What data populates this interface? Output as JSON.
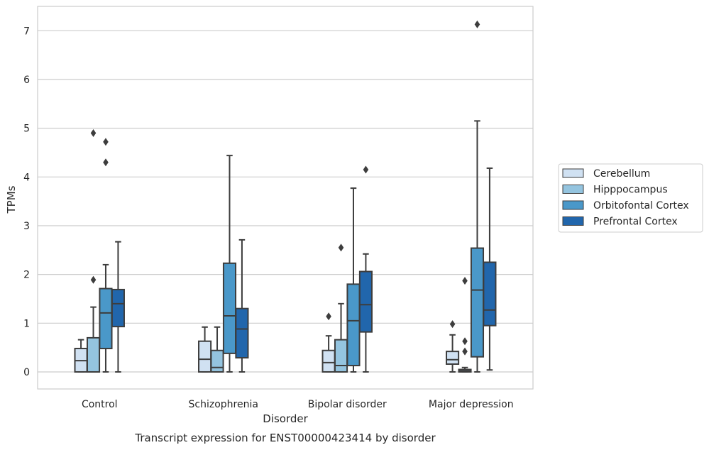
{
  "chart_data": {
    "type": "box",
    "title": "",
    "caption": "Transcript expression for ENST00000423414 by disorder",
    "xlabel": "Disorder",
    "ylabel": "TPMs",
    "ylim": [
      -0.35,
      7.5
    ],
    "yticks": [
      0,
      1,
      2,
      3,
      4,
      5,
      6,
      7
    ],
    "grid": "horizontal",
    "legend_placement": "right",
    "categories": [
      "Control",
      "Schizophrenia",
      "Bipolar disorder",
      "Major depression"
    ],
    "series": [
      {
        "name": "Cerebellum",
        "color": "#d0e1f2",
        "boxes": [
          {
            "whislo": 0,
            "q1": 0,
            "med": 0.23,
            "q3": 0.48,
            "whishi": 0.66,
            "fliers": []
          },
          {
            "whislo": 0,
            "q1": 0,
            "med": 0.26,
            "q3": 0.63,
            "whishi": 0.92,
            "fliers": []
          },
          {
            "whislo": 0,
            "q1": 0,
            "med": 0.19,
            "q3": 0.44,
            "whishi": 0.74,
            "fliers": [
              1.14
            ]
          },
          {
            "whislo": 0,
            "q1": 0.16,
            "med": 0.25,
            "q3": 0.42,
            "whishi": 0.76,
            "fliers": [
              0.98
            ]
          }
        ]
      },
      {
        "name": "Hipppocampus",
        "color": "#94c4df",
        "boxes": [
          {
            "whislo": 0,
            "q1": 0,
            "med": 0,
            "q3": 0.7,
            "whishi": 1.33,
            "fliers": [
              1.89,
              4.9
            ]
          },
          {
            "whislo": 0,
            "q1": 0,
            "med": 0.09,
            "q3": 0.44,
            "whishi": 0.92,
            "fliers": []
          },
          {
            "whislo": 0,
            "q1": 0,
            "med": 0.13,
            "q3": 0.66,
            "whishi": 1.4,
            "fliers": [
              2.55
            ]
          },
          {
            "whislo": 0,
            "q1": 0,
            "med": 0.02,
            "q3": 0.05,
            "whishi": 0.09,
            "fliers": [
              0.42,
              0.63,
              1.87
            ]
          }
        ]
      },
      {
        "name": "Orbitofontal Cortex",
        "color": "#4a98c9",
        "boxes": [
          {
            "whislo": 0,
            "q1": 0.48,
            "med": 1.21,
            "q3": 1.71,
            "whishi": 2.2,
            "fliers": [
              4.3,
              4.72
            ]
          },
          {
            "whislo": 0,
            "q1": 0.38,
            "med": 1.15,
            "q3": 2.23,
            "whishi": 4.44,
            "fliers": []
          },
          {
            "whislo": 0,
            "q1": 0.13,
            "med": 1.05,
            "q3": 1.8,
            "whishi": 3.77,
            "fliers": []
          },
          {
            "whislo": 0,
            "q1": 0.31,
            "med": 1.68,
            "q3": 2.54,
            "whishi": 5.15,
            "fliers": [
              7.13
            ]
          }
        ]
      },
      {
        "name": "Prefrontal Cortex",
        "color": "#2166ac",
        "boxes": [
          {
            "whislo": 0,
            "q1": 0.93,
            "med": 1.4,
            "q3": 1.69,
            "whishi": 2.67,
            "fliers": []
          },
          {
            "whislo": 0,
            "q1": 0.29,
            "med": 0.88,
            "q3": 1.3,
            "whishi": 2.71,
            "fliers": []
          },
          {
            "whislo": 0,
            "q1": 0.82,
            "med": 1.38,
            "q3": 2.06,
            "whishi": 2.42,
            "fliers": [
              4.15
            ]
          },
          {
            "whislo": 0.04,
            "q1": 0.95,
            "med": 1.27,
            "q3": 2.25,
            "whishi": 4.18,
            "fliers": []
          }
        ]
      }
    ]
  }
}
